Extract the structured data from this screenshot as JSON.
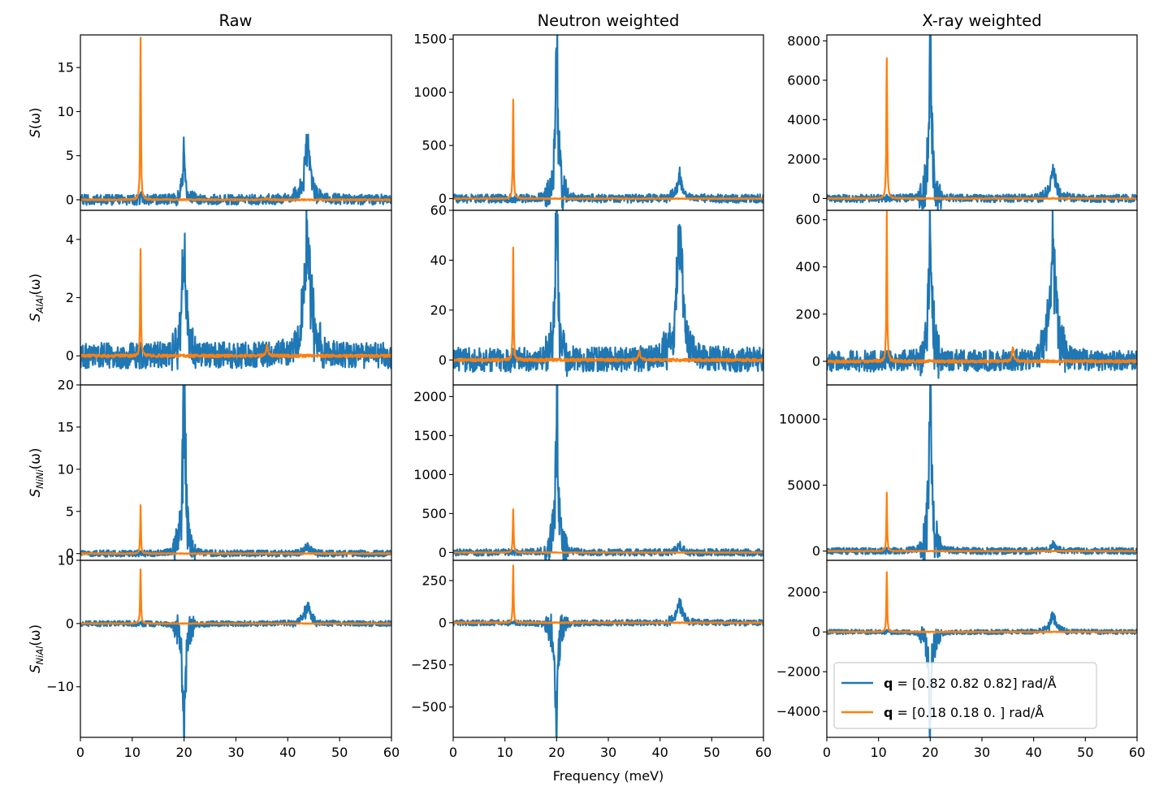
{
  "chart_data": {
    "type": "line",
    "col_titles": [
      "Raw",
      "Neutron weighted",
      "X-ray weighted"
    ],
    "row_ylabels": [
      {
        "base": "S",
        "sub": "",
        "tail": "(ω)"
      },
      {
        "base": "S",
        "sub": "AlAl",
        "tail": "(ω)"
      },
      {
        "base": "S",
        "sub": "NiNi",
        "tail": "(ω)"
      },
      {
        "base": "S",
        "sub": "NiAl",
        "tail": "(ω)"
      }
    ],
    "xlabel": "Frequency (meV)",
    "xlim": [
      0,
      60
    ],
    "xticks": [
      0,
      10,
      20,
      30,
      40,
      50,
      60
    ],
    "series": [
      {
        "name": "[0.82 0.82 0.82] rad/Å",
        "prefix": "q",
        "color": "#1f77b4"
      },
      {
        "name": "[0.18 0.18 0.  ] rad/Å",
        "prefix": "q",
        "color": "#ff7f0e"
      }
    ],
    "legend_location": "lower-right of bottom-right panel",
    "panels": [
      [
        {
          "ylim": [
            -1.2,
            18.7
          ],
          "yticks": [
            0,
            5,
            10,
            15
          ],
          "ytick_labels": [
            "0",
            "5",
            "10",
            "15"
          ],
          "blue_peaks": [
            [
              11.8,
              0.5,
              0.15
            ],
            [
              20,
              5.4,
              0.28
            ],
            [
              43.8,
              6.2,
              0.65
            ]
          ],
          "blue_noise": 0.6,
          "orange_peaks": [
            [
              11.6,
              17.8,
              0.09
            ],
            [
              36,
              0.2,
              0.2
            ]
          ],
          "orange_noise": 0.08
        },
        {
          "ylim": [
            -1.0,
            5.0
          ],
          "yticks": [
            0,
            2,
            4
          ],
          "ytick_labels": [
            "0",
            "2",
            "4"
          ],
          "blue_peaks": [
            [
              20,
              4.8,
              0.35
            ],
            [
              43.8,
              4.0,
              0.75
            ]
          ],
          "blue_noise": 0.45,
          "orange_peaks": [
            [
              11.6,
              3.6,
              0.09
            ],
            [
              36,
              0.35,
              0.2
            ]
          ],
          "orange_noise": 0.05
        },
        {
          "ylim": [
            -0.8,
            20.0
          ],
          "yticks": [
            0,
            5,
            10,
            15,
            20
          ],
          "ytick_labels": [
            "0",
            "5",
            "10",
            "15",
            "20"
          ],
          "blue_peaks": [
            [
              20,
              19.2,
              0.3
            ],
            [
              43.8,
              0.8,
              0.6
            ]
          ],
          "blue_noise": 0.4,
          "orange_peaks": [
            [
              11.6,
              5.3,
              0.09
            ]
          ],
          "orange_noise": 0.05
        },
        {
          "ylim": [
            -18.0,
            10.0
          ],
          "yticks": [
            -10,
            0,
            10
          ],
          "ytick_labels": [
            "−10",
            "0",
            "10"
          ],
          "blue_peaks": [
            [
              20,
              -17.5,
              0.3
            ],
            [
              43.8,
              3.2,
              0.6
            ]
          ],
          "blue_noise": 0.45,
          "orange_peaks": [
            [
              11.6,
              8.8,
              0.09
            ]
          ],
          "orange_noise": 0.05
        }
      ],
      [
        {
          "ylim": [
            -110,
            1540
          ],
          "yticks": [
            0,
            500,
            1000,
            1500
          ],
          "ytick_labels": [
            "0",
            "500",
            "1000",
            "1500"
          ],
          "blue_peaks": [
            [
              20,
              1460,
              0.3
            ],
            [
              43.8,
              190,
              0.6
            ]
          ],
          "blue_noise": 40,
          "orange_peaks": [
            [
              11.6,
              920,
              0.09
            ]
          ],
          "orange_noise": 4
        },
        {
          "ylim": [
            -10,
            60
          ],
          "yticks": [
            0,
            20,
            40,
            60
          ],
          "ytick_labels": [
            "0",
            "20",
            "40",
            "60"
          ],
          "blue_peaks": [
            [
              20,
              57,
              0.35
            ],
            [
              43.8,
              48,
              0.75
            ]
          ],
          "blue_noise": 5,
          "orange_peaks": [
            [
              11.6,
              43,
              0.09
            ],
            [
              36,
              3.5,
              0.2
            ]
          ],
          "orange_noise": 0.6
        },
        {
          "ylim": [
            -100,
            2150
          ],
          "yticks": [
            0,
            500,
            1000,
            1500,
            2000
          ],
          "ytick_labels": [
            "0",
            "500",
            "1000",
            "1500",
            "2000"
          ],
          "blue_peaks": [
            [
              20,
              2050,
              0.3
            ],
            [
              43.8,
              80,
              0.6
            ]
          ],
          "blue_noise": 45,
          "orange_peaks": [
            [
              11.6,
              560,
              0.09
            ]
          ],
          "orange_noise": 4
        },
        {
          "ylim": [
            -680,
            370
          ],
          "yticks": [
            -500,
            -250,
            0,
            250
          ],
          "ytick_labels": [
            "−500",
            "−250",
            "0",
            "250"
          ],
          "blue_peaks": [
            [
              20,
              -640,
              0.3
            ],
            [
              43.8,
              110,
              0.6
            ]
          ],
          "blue_noise": 18,
          "orange_peaks": [
            [
              11.6,
              315,
              0.09
            ]
          ],
          "orange_noise": 3
        }
      ],
      [
        {
          "ylim": [
            -600,
            8300
          ],
          "yticks": [
            0,
            2000,
            4000,
            6000,
            8000
          ],
          "ytick_labels": [
            "0",
            "2000",
            "4000",
            "6000",
            "8000"
          ],
          "blue_peaks": [
            [
              20,
              7800,
              0.3
            ],
            [
              43.8,
              1350,
              0.6
            ]
          ],
          "blue_noise": 200,
          "orange_peaks": [
            [
              11.6,
              7850,
              0.09
            ]
          ],
          "orange_noise": 25
        },
        {
          "ylim": [
            -100,
            640
          ],
          "yticks": [
            0,
            200,
            400,
            600
          ],
          "ytick_labels": [
            "0",
            "200",
            "400",
            "600"
          ],
          "blue_peaks": [
            [
              20,
              565,
              0.35
            ],
            [
              43.8,
              470,
              0.75
            ]
          ],
          "blue_noise": 45,
          "orange_peaks": [
            [
              11.6,
              605,
              0.09
            ],
            [
              36,
              60,
              0.2
            ]
          ],
          "orange_noise": 6
        },
        {
          "ylim": [
            -700,
            12600
          ],
          "yticks": [
            0,
            5000,
            10000
          ],
          "ytick_labels": [
            "0",
            "5000",
            "10000"
          ],
          "blue_peaks": [
            [
              20,
              12300,
              0.3
            ],
            [
              43.8,
              400,
              0.6
            ]
          ],
          "blue_noise": 250,
          "orange_peaks": [
            [
              11.6,
              4100,
              0.09
            ]
          ],
          "orange_noise": 25
        },
        {
          "ylim": [
            -5300,
            3600
          ],
          "yticks": [
            -4000,
            -2000,
            0,
            2000
          ],
          "ytick_labels": [
            "−4000",
            "−2000",
            "0",
            "2000"
          ],
          "blue_peaks": [
            [
              20,
              -4900,
              0.3
            ],
            [
              43.8,
              850,
              0.6
            ]
          ],
          "blue_noise": 120,
          "orange_peaks": [
            [
              11.6,
              3100,
              0.09
            ]
          ],
          "orange_noise": 20
        }
      ]
    ]
  }
}
